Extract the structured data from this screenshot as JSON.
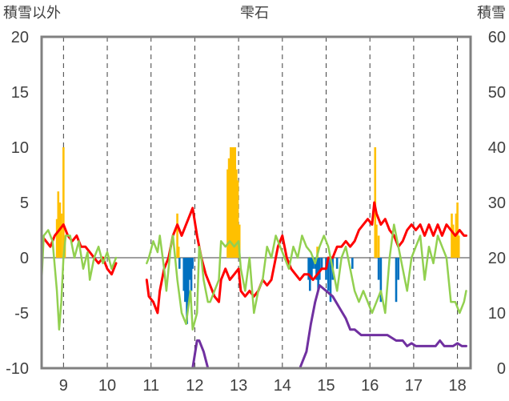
{
  "chart_data": {
    "type": "line",
    "title": "雫石",
    "left_axis_title": "積雪以外",
    "right_axis_title": "積雪",
    "x_ticks": [
      "9",
      "10",
      "11",
      "12",
      "13",
      "14",
      "15",
      "16",
      "17",
      "18"
    ],
    "x_range": [
      8.5,
      18.3
    ],
    "left_ylim": [
      -10,
      20
    ],
    "left_y_ticks": [
      20,
      15,
      10,
      5,
      0,
      -5,
      -10
    ],
    "right_ylim": [
      0,
      60
    ],
    "right_y_ticks": [
      60,
      50,
      40,
      30,
      20,
      10,
      0
    ],
    "grid": {
      "vertical_dashed": true,
      "horizontal_at_zero": true
    },
    "colors": {
      "red": "#ff0000",
      "green": "#92d050",
      "purple": "#7030a0",
      "orange_bars": "#ffc000",
      "blue_bars": "#0070c0",
      "axis": "#808080"
    },
    "series": [
      {
        "axis": "left",
        "style": "line",
        "color": "#ff0000",
        "segments": [
          [
            [
              8.5,
              2
            ],
            [
              8.6,
              1.5
            ],
            [
              8.7,
              1
            ],
            [
              8.8,
              2
            ],
            [
              8.9,
              2.5
            ],
            [
              9.0,
              3
            ],
            [
              9.1,
              2
            ],
            [
              9.2,
              1.5
            ],
            [
              9.3,
              2
            ],
            [
              9.4,
              1
            ],
            [
              9.5,
              1
            ],
            [
              9.6,
              0.5
            ],
            [
              9.7,
              0
            ],
            [
              9.8,
              -0.5
            ],
            [
              9.9,
              0
            ],
            [
              10.0,
              -1
            ],
            [
              10.1,
              -1.5
            ],
            [
              10.2,
              -0.5
            ]
          ],
          [
            [
              10.9,
              -2
            ],
            [
              10.95,
              -3.5
            ],
            [
              11.05,
              -4
            ],
            [
              11.15,
              -5
            ],
            [
              11.2,
              -3
            ],
            [
              11.3,
              -1
            ],
            [
              11.4,
              0
            ],
            [
              11.5,
              2
            ],
            [
              11.6,
              3
            ],
            [
              11.7,
              2
            ],
            [
              11.8,
              3
            ],
            [
              11.9,
              4
            ],
            [
              11.95,
              4.5
            ],
            [
              12.05,
              2
            ],
            [
              12.15,
              0
            ],
            [
              12.25,
              -1.5
            ],
            [
              12.35,
              -2.5
            ],
            [
              12.45,
              -3.5
            ],
            [
              12.55,
              -4
            ],
            [
              12.6,
              -2
            ],
            [
              12.7,
              -1
            ],
            [
              12.8,
              -2
            ],
            [
              12.9,
              -1.5
            ],
            [
              13.0,
              -1
            ],
            [
              13.05,
              -3
            ],
            [
              13.15,
              -3.5
            ],
            [
              13.25,
              -3
            ],
            [
              13.35,
              -3.5
            ],
            [
              13.45,
              -3
            ],
            [
              13.55,
              -2
            ],
            [
              13.65,
              -2.5
            ],
            [
              13.75,
              -2
            ],
            [
              13.85,
              0
            ],
            [
              13.9,
              1
            ],
            [
              14.0,
              2
            ],
            [
              14.1,
              0
            ],
            [
              14.2,
              -1
            ],
            [
              14.3,
              -1.5
            ],
            [
              14.4,
              -2
            ],
            [
              14.5,
              -1.5
            ],
            [
              14.6,
              -1.5
            ],
            [
              14.7,
              -2
            ],
            [
              14.8,
              -1.5
            ],
            [
              14.9,
              -1
            ],
            [
              15.0,
              -1
            ],
            [
              15.05,
              0
            ],
            [
              15.15,
              0
            ],
            [
              15.25,
              1
            ],
            [
              15.35,
              1
            ],
            [
              15.45,
              1.5
            ],
            [
              15.55,
              1
            ],
            [
              15.65,
              1.5
            ],
            [
              15.75,
              2.5
            ],
            [
              15.85,
              3
            ],
            [
              15.95,
              3.5
            ],
            [
              16.05,
              3
            ],
            [
              16.1,
              5
            ],
            [
              16.15,
              4
            ],
            [
              16.25,
              3
            ],
            [
              16.35,
              3.5
            ],
            [
              16.45,
              2.5
            ],
            [
              16.55,
              2
            ],
            [
              16.65,
              1
            ],
            [
              16.75,
              1.5
            ],
            [
              16.85,
              2.5
            ],
            [
              16.95,
              3
            ],
            [
              17.05,
              2.5
            ],
            [
              17.15,
              3
            ],
            [
              17.25,
              2
            ],
            [
              17.35,
              3
            ],
            [
              17.45,
              2
            ],
            [
              17.55,
              3
            ],
            [
              17.65,
              2
            ],
            [
              17.75,
              3
            ],
            [
              17.85,
              2.5
            ],
            [
              17.95,
              2
            ],
            [
              18.05,
              2.5
            ],
            [
              18.15,
              2
            ],
            [
              18.2,
              2
            ]
          ]
        ]
      },
      {
        "axis": "left",
        "style": "line",
        "color": "#92d050",
        "segments": [
          [
            [
              8.5,
              -2
            ],
            [
              8.55,
              2
            ],
            [
              8.65,
              2.5
            ],
            [
              8.75,
              1.5
            ],
            [
              8.85,
              -3
            ],
            [
              8.9,
              -6.5
            ],
            [
              8.95,
              -4
            ],
            [
              9.0,
              0
            ],
            [
              9.05,
              2
            ],
            [
              9.15,
              2
            ],
            [
              9.25,
              0
            ],
            [
              9.35,
              1.5
            ],
            [
              9.45,
              -1
            ],
            [
              9.55,
              0.5
            ],
            [
              9.6,
              -2
            ],
            [
              9.7,
              0
            ],
            [
              9.8,
              1
            ],
            [
              9.9,
              -0.5
            ],
            [
              10.0,
              0.5
            ],
            [
              10.1,
              -1
            ],
            [
              10.2,
              0
            ]
          ],
          [
            [
              10.9,
              -0.5
            ],
            [
              10.95,
              0
            ],
            [
              11.05,
              1.5
            ],
            [
              11.15,
              0.5
            ],
            [
              11.2,
              2
            ],
            [
              11.3,
              -1
            ],
            [
              11.35,
              -3
            ],
            [
              11.45,
              1
            ],
            [
              11.5,
              2
            ],
            [
              11.6,
              -2
            ],
            [
              11.7,
              -5
            ],
            [
              11.8,
              -6
            ],
            [
              11.9,
              -3
            ],
            [
              11.95,
              -6.5
            ],
            [
              12.05,
              -5
            ],
            [
              12.1,
              1
            ],
            [
              12.15,
              0
            ],
            [
              12.2,
              -2
            ],
            [
              12.3,
              -4
            ],
            [
              12.35,
              -4
            ],
            [
              12.45,
              -3
            ],
            [
              12.55,
              -2
            ],
            [
              12.6,
              1.5
            ],
            [
              12.7,
              1
            ],
            [
              12.8,
              1.5
            ],
            [
              12.9,
              1
            ],
            [
              13.0,
              1.5
            ],
            [
              13.05,
              -1
            ],
            [
              13.15,
              -3
            ],
            [
              13.25,
              0
            ],
            [
              13.35,
              -5
            ],
            [
              13.45,
              -3
            ],
            [
              13.55,
              -2
            ],
            [
              13.65,
              1
            ],
            [
              13.75,
              0
            ],
            [
              13.85,
              2
            ],
            [
              13.95,
              1
            ],
            [
              14.05,
              0
            ],
            [
              14.15,
              -1
            ],
            [
              14.25,
              1
            ],
            [
              14.35,
              0
            ],
            [
              14.45,
              2
            ],
            [
              14.55,
              1
            ],
            [
              14.65,
              0.5
            ],
            [
              14.75,
              -0.5
            ],
            [
              14.85,
              1
            ],
            [
              14.95,
              2
            ],
            [
              15.05,
              1
            ],
            [
              15.15,
              -1
            ],
            [
              15.25,
              -3
            ],
            [
              15.35,
              0
            ],
            [
              15.45,
              1
            ],
            [
              15.55,
              -1
            ],
            [
              15.65,
              -3
            ],
            [
              15.75,
              -4
            ],
            [
              15.85,
              -3
            ],
            [
              15.95,
              -4
            ],
            [
              16.05,
              -5
            ],
            [
              16.15,
              -4
            ],
            [
              16.25,
              -3
            ],
            [
              16.35,
              -5
            ],
            [
              16.45,
              0
            ],
            [
              16.55,
              3
            ],
            [
              16.65,
              1
            ],
            [
              16.75,
              -1
            ],
            [
              16.85,
              -3
            ],
            [
              16.95,
              0
            ],
            [
              17.05,
              1
            ],
            [
              17.15,
              2
            ],
            [
              17.25,
              -2
            ],
            [
              17.35,
              1
            ],
            [
              17.45,
              -0.5
            ],
            [
              17.55,
              2
            ],
            [
              17.65,
              1
            ],
            [
              17.75,
              0
            ],
            [
              17.85,
              -4
            ],
            [
              17.95,
              -4
            ],
            [
              18.05,
              -5
            ],
            [
              18.15,
              -4
            ],
            [
              18.2,
              -3
            ]
          ]
        ]
      },
      {
        "axis": "right",
        "style": "line",
        "color": "#7030a0",
        "segments": [
          [
            [
              8.5,
              0
            ],
            [
              9.0,
              0
            ],
            [
              9.5,
              0
            ],
            [
              10.2,
              0
            ]
          ],
          [
            [
              10.9,
              0
            ],
            [
              11.5,
              0
            ],
            [
              11.8,
              0
            ],
            [
              11.95,
              0
            ],
            [
              12.05,
              5
            ],
            [
              12.1,
              5
            ],
            [
              12.2,
              3
            ],
            [
              12.3,
              0
            ],
            [
              12.6,
              0
            ],
            [
              13.3,
              0
            ],
            [
              14.0,
              0
            ],
            [
              14.4,
              0
            ],
            [
              14.55,
              3
            ],
            [
              14.65,
              8
            ],
            [
              14.75,
              12
            ],
            [
              14.85,
              15
            ],
            [
              15.0,
              14
            ],
            [
              15.15,
              13
            ],
            [
              15.3,
              11
            ],
            [
              15.45,
              9
            ],
            [
              15.55,
              7
            ],
            [
              15.65,
              7
            ],
            [
              15.8,
              6
            ],
            [
              16.0,
              6
            ],
            [
              16.4,
              6
            ],
            [
              16.6,
              5
            ],
            [
              16.75,
              5
            ],
            [
              16.85,
              4
            ],
            [
              16.95,
              4.5
            ],
            [
              17.05,
              4
            ],
            [
              17.15,
              4
            ],
            [
              17.3,
              4
            ],
            [
              17.5,
              4
            ],
            [
              17.6,
              5
            ],
            [
              17.7,
              4
            ],
            [
              17.9,
              4
            ],
            [
              18.0,
              4.5
            ],
            [
              18.1,
              4
            ],
            [
              18.2,
              4
            ]
          ]
        ]
      }
    ],
    "bars": [
      {
        "axis": "left",
        "color": "#ffc000",
        "x": [
          8.85,
          8.88,
          8.92,
          8.95,
          9.0,
          9.03,
          11.6,
          11.63,
          12.75,
          12.78,
          12.82,
          12.85,
          12.88,
          12.92,
          12.95,
          12.98,
          13.02,
          14.8,
          16.12,
          16.15,
          16.2,
          17.87,
          17.9,
          17.93,
          17.97,
          18.0,
          18.03
        ],
        "values": [
          3.5,
          6,
          5,
          4,
          10,
          2,
          4,
          1,
          8,
          9,
          10,
          10,
          10,
          10,
          8,
          7,
          3,
          1,
          10,
          3,
          2,
          4,
          3,
          2,
          4,
          5,
          2
        ]
      },
      {
        "axis": "left",
        "color": "#0070c0",
        "x": [
          11.65,
          11.75,
          11.78,
          11.82,
          11.85,
          11.88,
          11.92,
          11.95,
          14.6,
          14.63,
          14.67,
          14.7,
          14.75,
          14.78,
          14.82,
          14.85,
          14.9,
          15.0,
          15.05,
          15.1,
          15.15,
          15.25,
          15.6,
          16.2,
          16.25,
          16.6,
          16.65
        ],
        "values": [
          -1,
          -3,
          -4,
          -6,
          -4,
          -2,
          -3,
          -1,
          -2,
          -3,
          -2,
          -1,
          -1,
          -2,
          -3,
          -2,
          -1,
          -2,
          -3,
          -4,
          -2,
          -1,
          -1,
          -2,
          -4,
          -4,
          -2
        ]
      }
    ]
  }
}
